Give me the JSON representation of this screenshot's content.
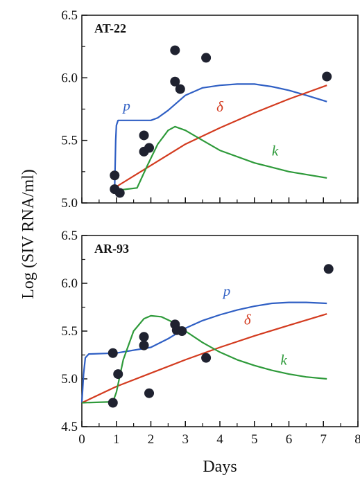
{
  "figure": {
    "ylabel": "Log (SIV RNA/ml)",
    "xlabel": "Days",
    "x_ticks": [
      "0",
      "1",
      "2",
      "3",
      "4",
      "5",
      "6",
      "7",
      "8"
    ],
    "colors": {
      "p": "#2f5fc4",
      "delta": "#d33b1f",
      "k": "#2e9a3a",
      "points": "#1f2230"
    }
  },
  "chart_data": [
    {
      "type": "scatter",
      "title": "AT-22",
      "xlabel": "Days",
      "ylabel": "Log (SIV RNA/ml)",
      "xlim": [
        0,
        8
      ],
      "ylim": [
        5.0,
        6.5
      ],
      "y_ticks": [
        "5.0",
        "5.5",
        "6.0",
        "6.5"
      ],
      "points": [
        {
          "x": 0.95,
          "y": 5.22
        },
        {
          "x": 0.95,
          "y": 5.11
        },
        {
          "x": 1.1,
          "y": 5.08
        },
        {
          "x": 1.8,
          "y": 5.54
        },
        {
          "x": 1.8,
          "y": 5.41
        },
        {
          "x": 1.95,
          "y": 5.44
        },
        {
          "x": 2.7,
          "y": 6.22
        },
        {
          "x": 2.7,
          "y": 5.97
        },
        {
          "x": 2.85,
          "y": 5.91
        },
        {
          "x": 3.6,
          "y": 6.16
        },
        {
          "x": 7.1,
          "y": 6.01
        }
      ],
      "series": [
        {
          "name": "p",
          "x": [
            0.95,
            0.98,
            1.0,
            1.05,
            2.0,
            2.2,
            2.5,
            3.0,
            3.5,
            4.0,
            4.5,
            5.0,
            5.5,
            6.0,
            6.5,
            7.1
          ],
          "y": [
            5.12,
            5.5,
            5.62,
            5.66,
            5.66,
            5.68,
            5.74,
            5.86,
            5.92,
            5.94,
            5.95,
            5.95,
            5.93,
            5.9,
            5.86,
            5.81
          ]
        },
        {
          "name": "δ",
          "x": [
            1.0,
            2.0,
            3.0,
            4.0,
            5.0,
            6.0,
            7.1
          ],
          "y": [
            5.13,
            5.3,
            5.47,
            5.6,
            5.72,
            5.83,
            5.94
          ]
        },
        {
          "name": "k",
          "x": [
            1.0,
            1.6,
            1.9,
            2.2,
            2.5,
            2.7,
            3.0,
            3.5,
            4.0,
            5.0,
            6.0,
            7.1
          ],
          "y": [
            5.1,
            5.12,
            5.3,
            5.47,
            5.58,
            5.61,
            5.58,
            5.5,
            5.42,
            5.32,
            5.25,
            5.2
          ]
        }
      ],
      "annotations": [
        {
          "text": "p",
          "x": 1.3,
          "y": 5.74
        },
        {
          "text": "δ",
          "x": 4.0,
          "y": 5.73
        },
        {
          "text": "k",
          "x": 5.6,
          "y": 5.38
        }
      ]
    },
    {
      "type": "scatter",
      "title": "AR-93",
      "xlabel": "Days",
      "ylabel": "Log (SIV RNA/ml)",
      "xlim": [
        0,
        8
      ],
      "ylim": [
        4.5,
        6.5
      ],
      "y_ticks": [
        "4.5",
        "5.0",
        "5.5",
        "6.0",
        "6.5"
      ],
      "points": [
        {
          "x": 0.9,
          "y": 5.27
        },
        {
          "x": 0.9,
          "y": 4.75
        },
        {
          "x": 1.05,
          "y": 5.05
        },
        {
          "x": 1.8,
          "y": 5.44
        },
        {
          "x": 1.8,
          "y": 5.35
        },
        {
          "x": 1.95,
          "y": 4.85
        },
        {
          "x": 2.7,
          "y": 5.57
        },
        {
          "x": 2.75,
          "y": 5.51
        },
        {
          "x": 2.9,
          "y": 5.5
        },
        {
          "x": 3.6,
          "y": 5.22
        },
        {
          "x": 7.15,
          "y": 6.15
        }
      ],
      "series": [
        {
          "name": "p",
          "x": [
            0.0,
            0.05,
            0.1,
            0.2,
            1.0,
            2.0,
            2.5,
            3.0,
            3.5,
            4.0,
            4.5,
            5.0,
            5.5,
            6.0,
            6.5,
            7.1
          ],
          "y": [
            4.75,
            5.05,
            5.22,
            5.26,
            5.27,
            5.33,
            5.42,
            5.53,
            5.61,
            5.67,
            5.72,
            5.76,
            5.79,
            5.8,
            5.8,
            5.79
          ]
        },
        {
          "name": "δ",
          "x": [
            0.0,
            1.0,
            2.0,
            3.0,
            4.0,
            5.0,
            6.0,
            7.1
          ],
          "y": [
            4.75,
            4.92,
            5.06,
            5.2,
            5.33,
            5.45,
            5.56,
            5.68
          ]
        },
        {
          "name": "k",
          "x": [
            0.0,
            0.9,
            1.0,
            1.2,
            1.5,
            1.8,
            2.0,
            2.3,
            2.6,
            3.0,
            3.5,
            4.0,
            4.5,
            5.0,
            5.5,
            6.0,
            6.5,
            7.1
          ],
          "y": [
            4.75,
            4.76,
            4.86,
            5.2,
            5.5,
            5.63,
            5.66,
            5.65,
            5.6,
            5.5,
            5.38,
            5.28,
            5.2,
            5.14,
            5.09,
            5.05,
            5.02,
            5.0
          ]
        }
      ],
      "annotations": [
        {
          "text": "p",
          "x": 4.2,
          "y": 5.87
        },
        {
          "text": "δ",
          "x": 4.8,
          "y": 5.57
        },
        {
          "text": "k",
          "x": 5.85,
          "y": 5.15
        }
      ]
    }
  ]
}
